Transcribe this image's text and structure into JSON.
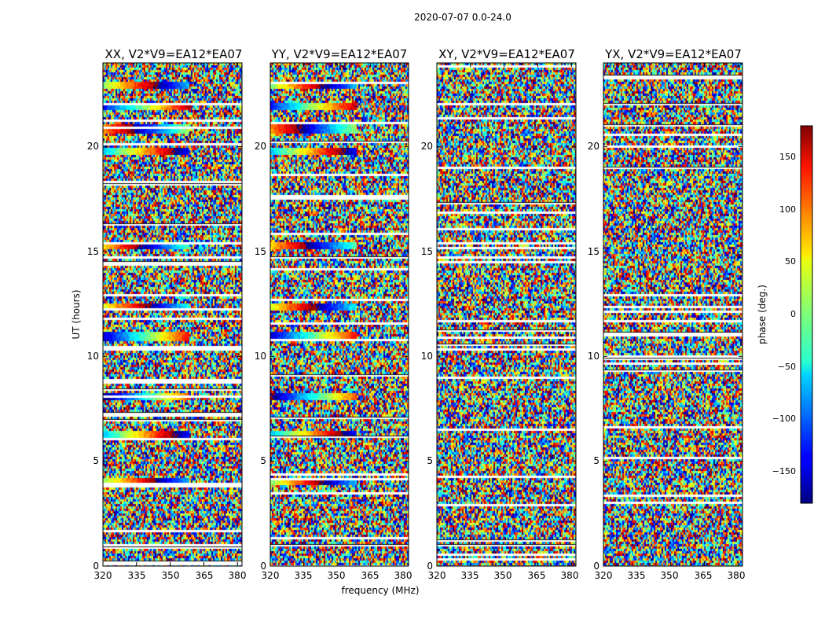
{
  "figure_title": "2020-07-07 0.0-24.0",
  "chart_data": [
    {
      "type": "heatmap",
      "title": "XX, V2*V9=EA12*EA07",
      "xlabel": "",
      "ylabel": "UT (hours)",
      "xlim": [
        320,
        382
      ],
      "ylim": [
        0,
        24
      ],
      "xticks": [
        320,
        335,
        350,
        365,
        380
      ],
      "yticks": [
        0,
        5,
        10,
        15,
        20
      ],
      "structured_bands_ut": [
        4.1,
        6.3,
        8.1,
        11.0,
        12.4,
        15.3,
        19.8,
        20.9,
        22.0,
        23.0
      ],
      "value": "phase (deg.)"
    },
    {
      "type": "heatmap",
      "title": "YY, V2*V9=EA12*EA07",
      "xlabel": "frequency (MHz)",
      "ylabel": "",
      "xlim": [
        320,
        382
      ],
      "ylim": [
        0,
        24
      ],
      "xticks": [
        320,
        335,
        350,
        365,
        380
      ],
      "yticks": [
        0,
        5,
        10,
        15,
        20
      ],
      "structured_bands_ut": [
        4.1,
        6.3,
        8.1,
        11.0,
        12.4,
        15.3,
        19.8,
        20.9,
        22.0,
        23.0
      ],
      "value": "phase (deg.)"
    },
    {
      "type": "heatmap",
      "title": "XY, V2*V9=EA12*EA07",
      "xlabel": "",
      "ylabel": "",
      "xlim": [
        320,
        382
      ],
      "ylim": [
        0,
        24
      ],
      "xticks": [
        320,
        335,
        350,
        365,
        380
      ],
      "yticks": [
        0,
        5,
        10,
        15,
        20
      ],
      "structured_bands_ut": [],
      "value": "phase (deg.)"
    },
    {
      "type": "heatmap",
      "title": "YX, V2*V9=EA12*EA07",
      "xlabel": "",
      "ylabel": "",
      "xlim": [
        320,
        382
      ],
      "ylim": [
        0,
        24
      ],
      "xticks": [
        320,
        335,
        350,
        365,
        380
      ],
      "yticks": [
        0,
        5,
        10,
        15,
        20
      ],
      "structured_bands_ut": [],
      "value": "phase (deg.)"
    }
  ],
  "colorbar": {
    "label": "phase (deg.)",
    "range": [
      -180,
      180
    ],
    "ticks": [
      150,
      100,
      50,
      0,
      -50,
      -100,
      -150
    ],
    "tick_labels": [
      "150",
      "100",
      "50",
      "0",
      "−50",
      "−100",
      "−150"
    ]
  }
}
